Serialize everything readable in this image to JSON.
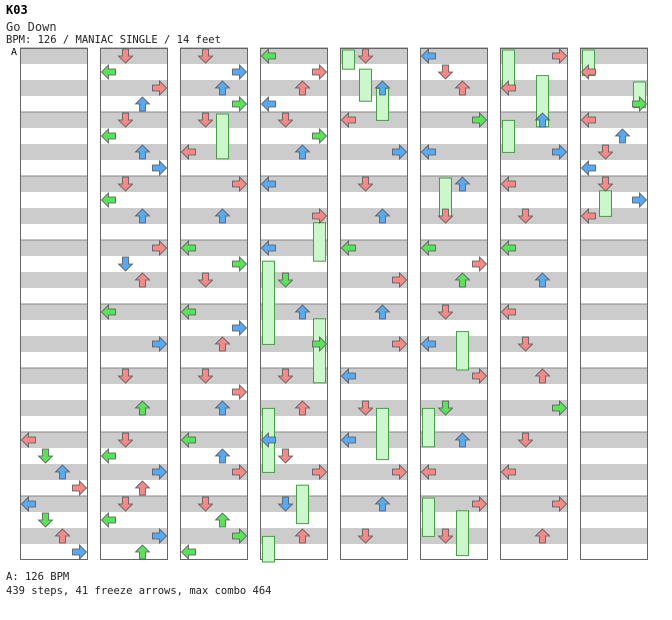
{
  "header": {
    "code": "K03",
    "song_title": "Go Down",
    "info_line": "BPM: 126 / MANIAC SINGLE / 14 feet",
    "bpm_marker": "A"
  },
  "footer": {
    "bpm_note": "A: 126 BPM",
    "stats": "439 steps, 41 freeze arrows, max combo 464"
  },
  "colors": {
    "left": "#f28a8a",
    "down_arrow_note_red": "#f28a8a",
    "blue": "#5aa9f0",
    "green": "#5ee05e",
    "freeze": "#ccf7cc",
    "stripe": "#cccccc"
  },
  "chart_data": {
    "type": "step-chart",
    "lanes": [
      "left",
      "down",
      "up",
      "right"
    ],
    "columns": 8,
    "measures_per_column": 8,
    "arrow_colors": [
      "blue",
      "red",
      "green"
    ],
    "columns_data": [
      {
        "notes": [
          [
            6,
            "L",
            "red"
          ],
          [
            6.25,
            "D",
            "green"
          ],
          [
            6.5,
            "U",
            "blue"
          ],
          [
            6.75,
            "R",
            "red"
          ],
          [
            7,
            "L",
            "blue"
          ],
          [
            7.25,
            "D",
            "green"
          ],
          [
            7.5,
            "U",
            "red"
          ],
          [
            7.75,
            "R",
            "blue"
          ]
        ],
        "freezes": []
      },
      {
        "notes": [
          [
            0,
            "D",
            "red"
          ],
          [
            0.25,
            "L",
            "green"
          ],
          [
            0.5,
            "R",
            "red"
          ],
          [
            0.75,
            "U",
            "blue"
          ],
          [
            1,
            "D",
            "red"
          ],
          [
            1.25,
            "L",
            "green"
          ],
          [
            1.5,
            "U",
            "blue"
          ],
          [
            1.75,
            "R",
            "blue"
          ],
          [
            2,
            "D",
            "red"
          ],
          [
            2.25,
            "L",
            "green"
          ],
          [
            2.5,
            "U",
            "blue"
          ],
          [
            3,
            "R",
            "red"
          ],
          [
            3.25,
            "D",
            "blue"
          ],
          [
            3.5,
            "U",
            "red"
          ],
          [
            4,
            "L",
            "green"
          ],
          [
            4.5,
            "R",
            "blue"
          ],
          [
            5,
            "D",
            "red"
          ],
          [
            5.5,
            "U",
            "green"
          ],
          [
            6,
            "D",
            "red"
          ],
          [
            6.25,
            "L",
            "green"
          ],
          [
            6.5,
            "R",
            "blue"
          ],
          [
            6.75,
            "U",
            "red"
          ],
          [
            7,
            "D",
            "red"
          ],
          [
            7.25,
            "L",
            "green"
          ],
          [
            7.5,
            "R",
            "blue"
          ],
          [
            7.75,
            "U",
            "green"
          ]
        ],
        "freezes": []
      },
      {
        "notes": [
          [
            0,
            "D",
            "red"
          ],
          [
            0.25,
            "R",
            "blue"
          ],
          [
            0.5,
            "U",
            "blue"
          ],
          [
            0.75,
            "R",
            "green"
          ],
          [
            1,
            "D",
            "red"
          ],
          [
            1.5,
            "L",
            "red"
          ],
          [
            2,
            "R",
            "red"
          ],
          [
            2.5,
            "U",
            "blue"
          ],
          [
            3,
            "L",
            "green"
          ],
          [
            3.25,
            "R",
            "green"
          ],
          [
            3.5,
            "D",
            "red"
          ],
          [
            4,
            "L",
            "green"
          ],
          [
            4.25,
            "R",
            "blue"
          ],
          [
            4.5,
            "U",
            "red"
          ],
          [
            5,
            "D",
            "red"
          ],
          [
            5.25,
            "R",
            "red"
          ],
          [
            5.5,
            "U",
            "blue"
          ],
          [
            6,
            "L",
            "green"
          ],
          [
            6.25,
            "U",
            "blue"
          ],
          [
            6.5,
            "R",
            "red"
          ],
          [
            7,
            "D",
            "red"
          ],
          [
            7.25,
            "U",
            "green"
          ],
          [
            7.5,
            "R",
            "green"
          ],
          [
            7.75,
            "L",
            "green"
          ]
        ],
        "freezes": [
          [
            1,
            1.7,
            "U"
          ]
        ]
      },
      {
        "notes": [
          [
            0,
            "L",
            "green"
          ],
          [
            0.25,
            "R",
            "red"
          ],
          [
            0.5,
            "U",
            "red"
          ],
          [
            0.75,
            "L",
            "blue"
          ],
          [
            1,
            "D",
            "red"
          ],
          [
            1.25,
            "R",
            "green"
          ],
          [
            1.5,
            "U",
            "blue"
          ],
          [
            2,
            "L",
            "blue"
          ],
          [
            2.5,
            "R",
            "red"
          ],
          [
            3,
            "L",
            "blue"
          ],
          [
            3.5,
            "D",
            "green"
          ],
          [
            4,
            "U",
            "blue"
          ],
          [
            4.5,
            "R",
            "green"
          ],
          [
            5,
            "D",
            "red"
          ],
          [
            5.5,
            "U",
            "red"
          ],
          [
            6,
            "L",
            "blue"
          ],
          [
            6.25,
            "D",
            "red"
          ],
          [
            6.5,
            "R",
            "red"
          ],
          [
            7,
            "D",
            "blue"
          ],
          [
            7.5,
            "U",
            "red"
          ]
        ],
        "freezes": [
          [
            2.7,
            3.3,
            "R"
          ],
          [
            3.3,
            4.6,
            "L"
          ],
          [
            4.2,
            5.2,
            "R"
          ],
          [
            5.6,
            6.6,
            "L"
          ],
          [
            6.8,
            7.4,
            "U"
          ],
          [
            7.6,
            8,
            "L"
          ]
        ]
      },
      {
        "notes": [
          [
            0,
            "D",
            "red"
          ],
          [
            0.5,
            "U",
            "blue"
          ],
          [
            1,
            "L",
            "red"
          ],
          [
            1.5,
            "R",
            "blue"
          ],
          [
            2,
            "D",
            "red"
          ],
          [
            2.5,
            "U",
            "blue"
          ],
          [
            3,
            "L",
            "green"
          ],
          [
            3.5,
            "R",
            "red"
          ],
          [
            4,
            "U",
            "blue"
          ],
          [
            4.5,
            "R",
            "red"
          ],
          [
            5,
            "L",
            "blue"
          ],
          [
            5.5,
            "D",
            "red"
          ],
          [
            6,
            "L",
            "blue"
          ],
          [
            6.5,
            "R",
            "red"
          ],
          [
            7,
            "U",
            "blue"
          ],
          [
            7.5,
            "D",
            "red"
          ]
        ],
        "freezes": [
          [
            0,
            0.3,
            "L"
          ],
          [
            0.3,
            0.8,
            "D"
          ],
          [
            0.6,
            1.1,
            "U"
          ],
          [
            5.6,
            6.4,
            "U"
          ]
        ]
      },
      {
        "notes": [
          [
            0,
            "L",
            "blue"
          ],
          [
            0.25,
            "D",
            "red"
          ],
          [
            0.5,
            "U",
            "red"
          ],
          [
            1,
            "R",
            "green"
          ],
          [
            1.5,
            "L",
            "blue"
          ],
          [
            2,
            "U",
            "blue"
          ],
          [
            2.5,
            "D",
            "red"
          ],
          [
            3,
            "L",
            "green"
          ],
          [
            3.25,
            "R",
            "red"
          ],
          [
            3.5,
            "U",
            "green"
          ],
          [
            4,
            "D",
            "red"
          ],
          [
            4.5,
            "L",
            "blue"
          ],
          [
            5,
            "R",
            "red"
          ],
          [
            5.5,
            "D",
            "green"
          ],
          [
            6,
            "U",
            "blue"
          ],
          [
            6.5,
            "L",
            "red"
          ],
          [
            7,
            "R",
            "red"
          ],
          [
            7.5,
            "D",
            "red"
          ]
        ],
        "freezes": [
          [
            2,
            2.6,
            "D"
          ],
          [
            4.4,
            5,
            "U"
          ],
          [
            5.6,
            6.2,
            "L"
          ],
          [
            7,
            7.6,
            "L"
          ],
          [
            7.2,
            7.9,
            "U"
          ]
        ]
      },
      {
        "notes": [
          [
            0,
            "R",
            "red"
          ],
          [
            0.5,
            "L",
            "red"
          ],
          [
            1,
            "U",
            "blue"
          ],
          [
            1.5,
            "R",
            "blue"
          ],
          [
            2,
            "L",
            "red"
          ],
          [
            2.5,
            "D",
            "red"
          ],
          [
            3,
            "L",
            "green"
          ],
          [
            3.5,
            "U",
            "blue"
          ],
          [
            4,
            "L",
            "red"
          ],
          [
            4.5,
            "D",
            "red"
          ],
          [
            5,
            "U",
            "red"
          ],
          [
            5.5,
            "R",
            "green"
          ],
          [
            6,
            "D",
            "red"
          ],
          [
            6.5,
            "L",
            "red"
          ],
          [
            7,
            "R",
            "red"
          ],
          [
            7.5,
            "U",
            "red"
          ]
        ],
        "freezes": [
          [
            0,
            0.6,
            "L"
          ],
          [
            0.4,
            1.2,
            "U"
          ],
          [
            1.1,
            1.6,
            "L"
          ]
        ]
      },
      {
        "notes": [
          [
            0.25,
            "L",
            "red"
          ],
          [
            0.75,
            "R",
            "green"
          ],
          [
            1,
            "L",
            "red"
          ],
          [
            1.25,
            "U",
            "blue"
          ],
          [
            1.5,
            "D",
            "red"
          ],
          [
            1.75,
            "L",
            "blue"
          ],
          [
            2,
            "D",
            "red"
          ],
          [
            2.25,
            "R",
            "blue"
          ],
          [
            2.5,
            "L",
            "red"
          ]
        ],
        "freezes": [
          [
            0,
            0.4,
            "L"
          ],
          [
            0.5,
            0.9,
            "R"
          ],
          [
            2.2,
            2.6,
            "D"
          ]
        ]
      }
    ]
  }
}
